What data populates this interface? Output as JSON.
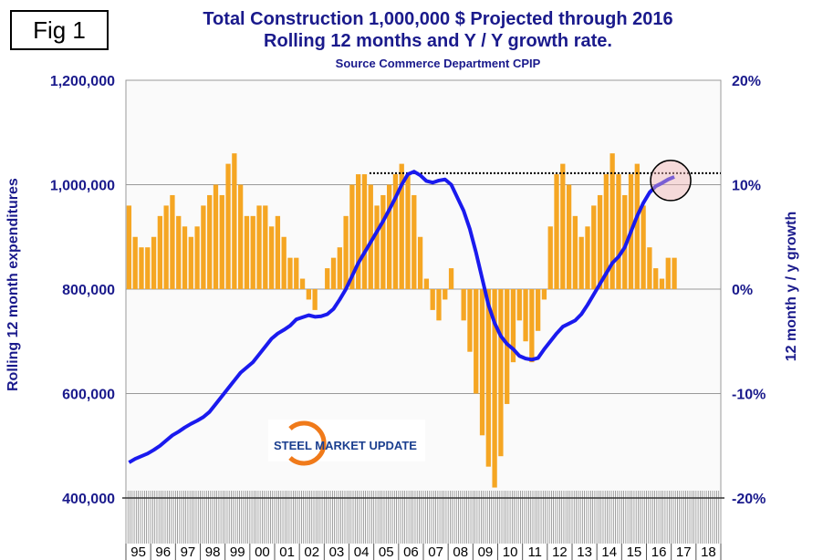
{
  "figure_label": "Fig 1",
  "chart_data": {
    "type": "bar+line",
    "title": "Total Construction 1,000,000 $ Projected through 2016",
    "subtitle": "Rolling 12 months and Y / Y growth rate.",
    "source": "Source Commerce Department CPIP",
    "ylabel_left": "Rolling 12 month expenditures",
    "ylabel_right": "12 month y / y growth",
    "ylim_left": [
      400000,
      1200000
    ],
    "ylim_right": [
      -20,
      20
    ],
    "left_ticks": [
      "1,200,000",
      "1,000,000",
      "800,000",
      "600,000",
      "400,000"
    ],
    "right_ticks": [
      "20%",
      "10%",
      "0%",
      "-10%",
      "-20%"
    ],
    "x_ticks": [
      "95",
      "96",
      "97",
      "98",
      "99",
      "00",
      "01",
      "02",
      "03",
      "04",
      "05",
      "06",
      "07",
      "08",
      "09",
      "10",
      "11",
      "12",
      "13",
      "14",
      "15",
      "16",
      "17",
      "18"
    ],
    "x_start_year": 1995,
    "x_interval": "quarter",
    "series": [
      {
        "name": "Y/Y growth (%)",
        "type": "bar",
        "color": "#f5a623",
        "values": [
          8,
          5,
          4,
          4,
          5,
          7,
          8,
          9,
          7,
          6,
          5,
          6,
          8,
          9,
          10,
          9,
          12,
          13,
          10,
          7,
          7,
          8,
          8,
          6,
          7,
          5,
          3,
          3,
          1,
          -1,
          -2,
          0,
          2,
          3,
          4,
          7,
          10,
          11,
          11,
          10,
          8,
          9,
          10,
          11,
          12,
          11,
          9,
          5,
          1,
          -2,
          -3,
          -1,
          2,
          0,
          -3,
          -6,
          -10,
          -14,
          -17,
          -19,
          -16,
          -11,
          -7,
          -3,
          -5,
          -7,
          -4,
          -1,
          6,
          11,
          12,
          10,
          7,
          5,
          6,
          8,
          9,
          11,
          13,
          11,
          9,
          11,
          12,
          8,
          4,
          2,
          1,
          3,
          3
        ]
      },
      {
        "name": "Rolling 12 month total ($000)",
        "type": "line",
        "color": "#1a1aee",
        "values": [
          468,
          475,
          480,
          485,
          492,
          500,
          510,
          520,
          527,
          535,
          542,
          548,
          555,
          565,
          580,
          595,
          610,
          625,
          640,
          650,
          660,
          675,
          690,
          705,
          715,
          722,
          730,
          742,
          746,
          750,
          747,
          748,
          752,
          762,
          780,
          800,
          825,
          850,
          870,
          890,
          910,
          930,
          952,
          975,
          1000,
          1020,
          1025,
          1018,
          1007,
          1004,
          1008,
          1010,
          1000,
          975,
          950,
          915,
          870,
          820,
          770,
          735,
          710,
          695,
          685,
          672,
          667,
          665,
          668,
          685,
          700,
          715,
          728,
          734,
          740,
          752,
          770,
          790,
          810,
          830,
          850,
          862,
          880,
          910,
          940,
          965,
          985,
          997,
          1003,
          1010,
          1015
        ]
      }
    ],
    "annotations": {
      "dotted_reference_level": 1022000,
      "highlight_circle": "latest point, early 2017"
    }
  },
  "logo": "STEEL MARKET UPDATE"
}
